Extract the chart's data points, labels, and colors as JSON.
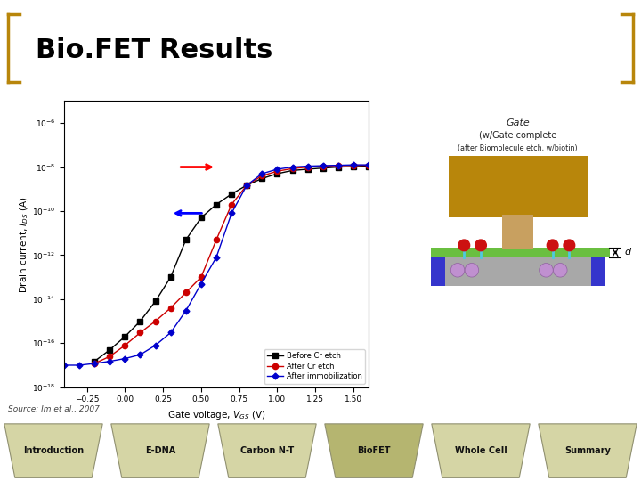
{
  "title": "Bio.FET Results",
  "title_fontsize": 22,
  "background_color": "#ffffff",
  "bracket_color": "#b8860b",
  "title_color": "#000000",
  "separator_color": "#d0d0b8",
  "gate_text1": "Gate",
  "gate_text2": "(w/Gate complete",
  "gate_text3": "(after Biomolecule etch, w/biotin)",
  "legend_labels": [
    "Before Cr etch",
    "After Cr etch",
    "After immobilization"
  ],
  "source_text": "Source: Im et al., 2007",
  "nav_labels": [
    "Introduction",
    "E-DNA",
    "Carbon N-T",
    "BioFET",
    "Whole Cell",
    "Summary"
  ],
  "nav_active": 3,
  "diagram_gate_color": "#b8860b",
  "diagram_stem_color": "#c8a060",
  "diagram_oxide_color": "#6abf40",
  "diagram_substrate_color": "#a8a8a8",
  "diagram_contact_color": "#3535cc",
  "diagram_biotin_color": "#cc1111",
  "diagram_streptavidin_color": "#c090d0",
  "diagram_linker_color": "#50c8e0",
  "before_cr_color": "#000000",
  "after_cr_color": "#cc0000",
  "after_imm_color": "#0000cc",
  "x_data_before": [
    -0.2,
    -0.1,
    0.0,
    0.1,
    0.2,
    0.3,
    0.4,
    0.5,
    0.6,
    0.7,
    0.8,
    0.9,
    1.0,
    1.1,
    1.2,
    1.3,
    1.4,
    1.5,
    1.6
  ],
  "y_data_before": [
    1.5e-17,
    5e-17,
    2e-16,
    1e-15,
    8e-15,
    1e-13,
    5e-12,
    5e-11,
    2e-10,
    6e-10,
    1.5e-09,
    3e-09,
    5e-09,
    7e-09,
    8e-09,
    9e-09,
    1e-08,
    1.05e-08,
    1.1e-08
  ],
  "x_data_after": [
    -0.2,
    -0.1,
    0.0,
    0.1,
    0.2,
    0.3,
    0.4,
    0.5,
    0.6,
    0.7,
    0.8,
    0.9,
    1.0,
    1.1,
    1.2,
    1.3,
    1.4,
    1.5,
    1.6
  ],
  "y_data_after": [
    1.2e-17,
    2.5e-17,
    8e-17,
    3e-16,
    1e-15,
    4e-15,
    2e-14,
    1e-13,
    5e-12,
    2e-10,
    1.5e-09,
    4e-09,
    6.5e-09,
    8.5e-09,
    1e-08,
    1.1e-08,
    1.15e-08,
    1.2e-08,
    1.2e-08
  ],
  "x_data_imm": [
    -0.4,
    -0.3,
    -0.2,
    -0.1,
    0.0,
    0.1,
    0.2,
    0.3,
    0.4,
    0.5,
    0.6,
    0.7,
    0.8,
    0.9,
    1.0,
    1.1,
    1.2,
    1.3,
    1.4,
    1.5,
    1.6
  ],
  "y_data_imm": [
    1e-17,
    1e-17,
    1.2e-17,
    1.5e-17,
    2e-17,
    3e-17,
    8e-17,
    3e-16,
    3e-15,
    5e-14,
    8e-13,
    8e-11,
    1.5e-09,
    5e-09,
    8e-09,
    1e-08,
    1.1e-08,
    1.15e-08,
    1.2e-08,
    1.25e-08,
    1.25e-08
  ],
  "xlabel": "Gate voltage, $V_{GS}$ (V)",
  "ylabel": "Drain current, $I_{DS}$ (A)",
  "xlim": [
    -0.4,
    1.6
  ],
  "ylim_log": [
    -18,
    -5
  ]
}
